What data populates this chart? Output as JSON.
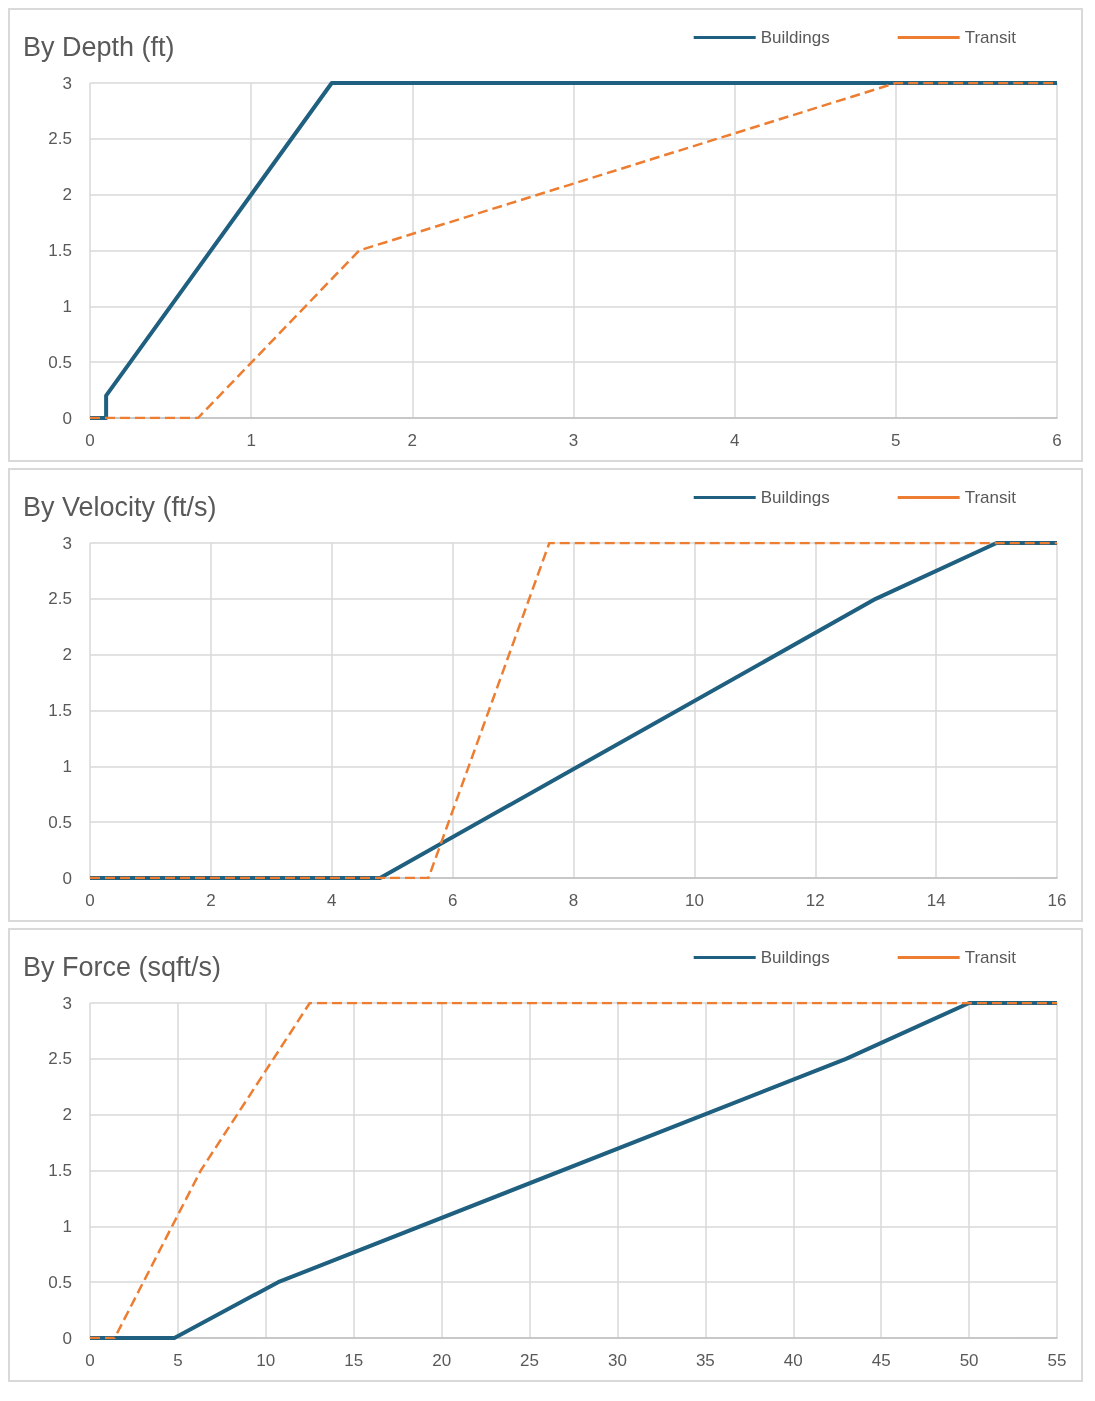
{
  "chart_data": [
    {
      "type": "line",
      "title": "By Depth (ft)",
      "xlim": [
        0,
        6
      ],
      "xticks": [
        0,
        1,
        2,
        3,
        4,
        5,
        6
      ],
      "ylim": [
        0,
        3
      ],
      "yticks": [
        0,
        0.5,
        1,
        1.5,
        2,
        2.5,
        3
      ],
      "grid": true,
      "legend": "top right",
      "marker": "none",
      "series": [
        {
          "name": "Buildings",
          "color": "#1f5f7f",
          "line_style": "solid",
          "x": [
            0,
            0.1,
            0.1,
            1.5,
            6
          ],
          "values": [
            0,
            0,
            0.2,
            3,
            3
          ]
        },
        {
          "name": "Transit",
          "color": "#ed7d31",
          "line_style": "dashed",
          "x": [
            0,
            0.67,
            1.67,
            5,
            6
          ],
          "values": [
            0,
            0,
            1.5,
            3,
            3
          ]
        }
      ]
    },
    {
      "type": "line",
      "title": "By Velocity (ft/s)",
      "xlim": [
        0,
        16
      ],
      "xticks": [
        0,
        2,
        4,
        6,
        8,
        10,
        12,
        14,
        16
      ],
      "ylim": [
        0,
        3
      ],
      "yticks": [
        0,
        0.5,
        1,
        1.5,
        2,
        2.5,
        3
      ],
      "grid": true,
      "legend": "top right",
      "marker": "none",
      "series": [
        {
          "name": "Buildings",
          "color": "#1f5f7f",
          "line_style": "solid",
          "x": [
            0,
            4.8,
            13,
            15,
            16
          ],
          "values": [
            0,
            0,
            2.5,
            3,
            3
          ]
        },
        {
          "name": "Transit",
          "color": "#ed7d31",
          "line_style": "dashed",
          "x": [
            0,
            5.6,
            7.6,
            16
          ],
          "values": [
            0,
            0,
            3,
            3
          ]
        }
      ]
    },
    {
      "type": "line",
      "title": "By Force (sqft/s)",
      "xlim": [
        0,
        55
      ],
      "xticks": [
        0,
        5,
        10,
        15,
        20,
        25,
        30,
        35,
        40,
        45,
        50,
        55
      ],
      "ylim": [
        0,
        3
      ],
      "yticks": [
        0,
        0.5,
        1,
        1.5,
        2,
        2.5,
        3
      ],
      "grid": true,
      "legend": "top right",
      "marker": "none",
      "series": [
        {
          "name": "Buildings",
          "color": "#1f5f7f",
          "line_style": "solid",
          "x": [
            0,
            4.8,
            10.7,
            43,
            50,
            55
          ],
          "values": [
            0,
            0,
            0.5,
            2.5,
            3,
            3
          ]
        },
        {
          "name": "Transit",
          "color": "#ed7d31",
          "line_style": "dashed",
          "x": [
            0,
            1.4,
            6.3,
            12.5,
            55
          ],
          "values": [
            0,
            0,
            1.5,
            3,
            3
          ]
        }
      ]
    }
  ]
}
